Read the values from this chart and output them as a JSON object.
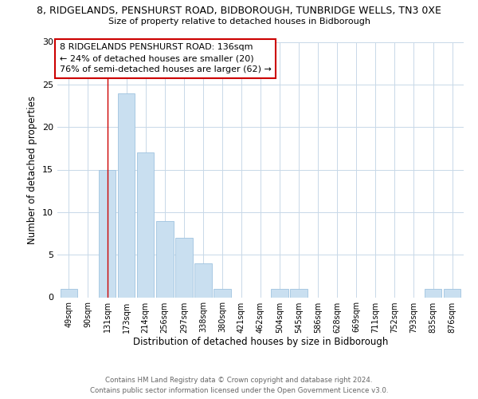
{
  "title_line1": "8, RIDGELANDS, PENSHURST ROAD, BIDBOROUGH, TUNBRIDGE WELLS, TN3 0XE",
  "title_line2": "Size of property relative to detached houses in Bidborough",
  "xlabel": "Distribution of detached houses by size in Bidborough",
  "ylabel": "Number of detached properties",
  "bar_labels": [
    "49sqm",
    "90sqm",
    "131sqm",
    "173sqm",
    "214sqm",
    "256sqm",
    "297sqm",
    "338sqm",
    "380sqm",
    "421sqm",
    "462sqm",
    "504sqm",
    "545sqm",
    "586sqm",
    "628sqm",
    "669sqm",
    "711sqm",
    "752sqm",
    "793sqm",
    "835sqm",
    "876sqm"
  ],
  "bar_values": [
    1,
    0,
    15,
    24,
    17,
    9,
    7,
    4,
    1,
    0,
    0,
    1,
    1,
    0,
    0,
    0,
    0,
    0,
    0,
    1,
    1
  ],
  "bar_color": "#c9dff0",
  "bar_edgecolor": "#a0c4e0",
  "ylim": [
    0,
    30
  ],
  "yticks": [
    0,
    5,
    10,
    15,
    20,
    25,
    30
  ],
  "property_line_index": 2,
  "property_line_color": "#cc0000",
  "annotation_text": "8 RIDGELANDS PENSHURST ROAD: 136sqm\n← 24% of detached houses are smaller (20)\n76% of semi-detached houses are larger (62) →",
  "annotation_box_color": "#ffffff",
  "annotation_box_edgecolor": "#cc0000",
  "footer_line1": "Contains HM Land Registry data © Crown copyright and database right 2024.",
  "footer_line2": "Contains public sector information licensed under the Open Government Licence v3.0.",
  "background_color": "#ffffff",
  "grid_color": "#c8d8e8"
}
